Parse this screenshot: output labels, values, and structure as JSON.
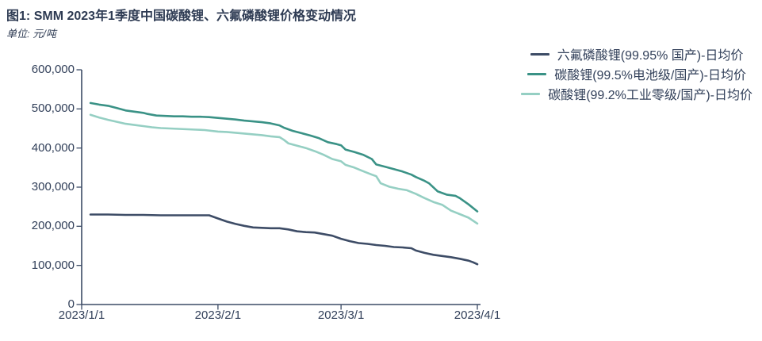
{
  "header": {
    "figure_label": "图1:",
    "title": "SMM 2023年1季度中国碳酸锂、六氟磷酸锂价格变动情况",
    "unit": "单位: 元/吨"
  },
  "colors": {
    "ink": "#32405a",
    "axis": "#3c4b66",
    "lipf6_line": "#3d4c66",
    "battery_grade_line": "#3a9286",
    "industrial_grade_line": "#95cfc3"
  },
  "chart_data": {
    "type": "line",
    "title": "SMM 2023年1季度中国碳酸锂、六氟磷酸锂价格变动情况",
    "xlabel": "",
    "ylabel": "元/吨",
    "ylim": [
      0,
      600000
    ],
    "x_unit": "days_since_2023-01-01",
    "x_range_days": 90,
    "grid": false,
    "legend_position": "top-right",
    "yticks": [
      {
        "label": "0",
        "value": 0
      },
      {
        "label": "100,000",
        "value": 100000
      },
      {
        "label": "200,000",
        "value": 200000
      },
      {
        "label": "300,000",
        "value": 300000
      },
      {
        "label": "400,000",
        "value": 400000
      },
      {
        "label": "500,000",
        "value": 500000
      },
      {
        "label": "600,000",
        "value": 600000
      }
    ],
    "xticks": [
      {
        "label": "2023/1/1",
        "day": 0
      },
      {
        "label": "2023/2/1",
        "day": 31
      },
      {
        "label": "2023/3/1",
        "day": 59
      },
      {
        "label": "2023/4/1",
        "day": 90
      }
    ],
    "series": [
      {
        "name": "六氟磷酸锂(99.95% 国产)-日均价",
        "color": "#3d4c66",
        "points": [
          [
            2,
            230000
          ],
          [
            6,
            230000
          ],
          [
            10,
            229000
          ],
          [
            14,
            229000
          ],
          [
            18,
            228000
          ],
          [
            22,
            228000
          ],
          [
            26,
            228000
          ],
          [
            29,
            228000
          ],
          [
            31,
            220000
          ],
          [
            33,
            212000
          ],
          [
            35,
            206000
          ],
          [
            37,
            201000
          ],
          [
            39,
            197000
          ],
          [
            41,
            196000
          ],
          [
            43,
            195000
          ],
          [
            45,
            195000
          ],
          [
            47,
            192000
          ],
          [
            49,
            187000
          ],
          [
            51,
            185000
          ],
          [
            53,
            184000
          ],
          [
            55,
            180000
          ],
          [
            57,
            176000
          ],
          [
            59,
            168000
          ],
          [
            61,
            162000
          ],
          [
            63,
            157000
          ],
          [
            65,
            155000
          ],
          [
            67,
            152000
          ],
          [
            69,
            150000
          ],
          [
            71,
            147000
          ],
          [
            73,
            146000
          ],
          [
            75,
            144000
          ],
          [
            76,
            138000
          ],
          [
            78,
            132000
          ],
          [
            80,
            127000
          ],
          [
            82,
            124000
          ],
          [
            84,
            121000
          ],
          [
            86,
            117000
          ],
          [
            88,
            112000
          ],
          [
            89,
            108000
          ],
          [
            90,
            103000
          ]
        ]
      },
      {
        "name": "碳酸锂(99.5%电池级/国产)-日均价",
        "color": "#3a9286",
        "points": [
          [
            2,
            515000
          ],
          [
            4,
            511000
          ],
          [
            6,
            508000
          ],
          [
            8,
            502000
          ],
          [
            10,
            496000
          ],
          [
            12,
            493000
          ],
          [
            14,
            490000
          ],
          [
            15,
            487000
          ],
          [
            17,
            483000
          ],
          [
            19,
            482000
          ],
          [
            21,
            481000
          ],
          [
            23,
            481000
          ],
          [
            25,
            480000
          ],
          [
            27,
            480000
          ],
          [
            29,
            479000
          ],
          [
            31,
            477000
          ],
          [
            33,
            475000
          ],
          [
            35,
            473000
          ],
          [
            37,
            470000
          ],
          [
            39,
            468000
          ],
          [
            41,
            466000
          ],
          [
            43,
            463000
          ],
          [
            45,
            458000
          ],
          [
            46,
            452000
          ],
          [
            48,
            444000
          ],
          [
            50,
            438000
          ],
          [
            52,
            432000
          ],
          [
            54,
            425000
          ],
          [
            56,
            415000
          ],
          [
            58,
            410000
          ],
          [
            59,
            407000
          ],
          [
            60,
            396000
          ],
          [
            62,
            390000
          ],
          [
            64,
            383000
          ],
          [
            66,
            372000
          ],
          [
            67,
            358000
          ],
          [
            69,
            352000
          ],
          [
            71,
            346000
          ],
          [
            73,
            340000
          ],
          [
            75,
            332000
          ],
          [
            76,
            326000
          ],
          [
            78,
            316000
          ],
          [
            79,
            310000
          ],
          [
            81,
            289000
          ],
          [
            83,
            281000
          ],
          [
            85,
            278000
          ],
          [
            86,
            272000
          ],
          [
            88,
            256000
          ],
          [
            90,
            238000
          ]
        ]
      },
      {
        "name": "碳酸锂(99.2%工业零级/国产)-日均价",
        "color": "#95cfc3",
        "points": [
          [
            2,
            485000
          ],
          [
            4,
            478000
          ],
          [
            6,
            472000
          ],
          [
            8,
            467000
          ],
          [
            10,
            462000
          ],
          [
            12,
            459000
          ],
          [
            14,
            456000
          ],
          [
            16,
            453000
          ],
          [
            18,
            451000
          ],
          [
            20,
            450000
          ],
          [
            22,
            449000
          ],
          [
            24,
            448000
          ],
          [
            26,
            447000
          ],
          [
            28,
            446000
          ],
          [
            31,
            442000
          ],
          [
            33,
            441000
          ],
          [
            35,
            439000
          ],
          [
            37,
            437000
          ],
          [
            39,
            435000
          ],
          [
            41,
            433000
          ],
          [
            43,
            430000
          ],
          [
            45,
            428000
          ],
          [
            46,
            421000
          ],
          [
            47,
            412000
          ],
          [
            49,
            406000
          ],
          [
            51,
            400000
          ],
          [
            53,
            392000
          ],
          [
            55,
            383000
          ],
          [
            57,
            372000
          ],
          [
            59,
            366000
          ],
          [
            60,
            357000
          ],
          [
            62,
            350000
          ],
          [
            64,
            341000
          ],
          [
            66,
            332000
          ],
          [
            67,
            328000
          ],
          [
            68,
            310000
          ],
          [
            70,
            301000
          ],
          [
            72,
            296000
          ],
          [
            74,
            292000
          ],
          [
            76,
            283000
          ],
          [
            78,
            272000
          ],
          [
            80,
            262000
          ],
          [
            82,
            255000
          ],
          [
            84,
            240000
          ],
          [
            86,
            231000
          ],
          [
            88,
            222000
          ],
          [
            90,
            207000
          ]
        ]
      }
    ]
  }
}
